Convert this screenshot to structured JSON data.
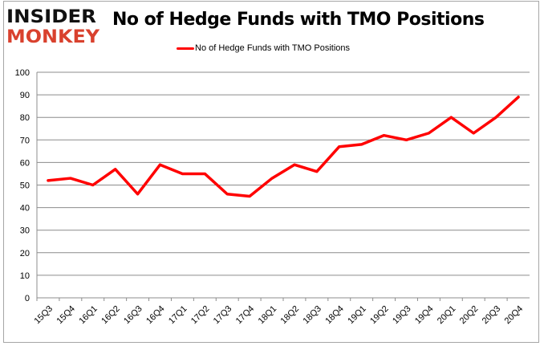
{
  "logo": {
    "line1": "INSIDER",
    "line2": "MONKEY"
  },
  "chart_data": {
    "type": "line",
    "title": "No of Hedge Funds with TMO Positions",
    "xlabel": "",
    "ylabel": "",
    "categories": [
      "15Q3",
      "15Q4",
      "16Q1",
      "16Q2",
      "16Q3",
      "16Q4",
      "17Q1",
      "17Q2",
      "17Q3",
      "17Q4",
      "18Q1",
      "18Q2",
      "18Q3",
      "18Q4",
      "19Q1",
      "19Q2",
      "19Q3",
      "19Q4",
      "20Q1",
      "20Q2",
      "20Q3",
      "20Q4"
    ],
    "series": [
      {
        "name": "No of Hedge Funds with TMO Positions",
        "color": "#ff0000",
        "values": [
          52,
          53,
          50,
          57,
          46,
          59,
          55,
          55,
          46,
          45,
          53,
          59,
          56,
          67,
          68,
          72,
          70,
          73,
          80,
          73,
          80,
          89
        ]
      }
    ],
    "ylim": [
      0,
      100
    ],
    "yticks": [
      0,
      10,
      20,
      30,
      40,
      50,
      60,
      70,
      80,
      90,
      100
    ],
    "grid": true,
    "legend": "top"
  }
}
